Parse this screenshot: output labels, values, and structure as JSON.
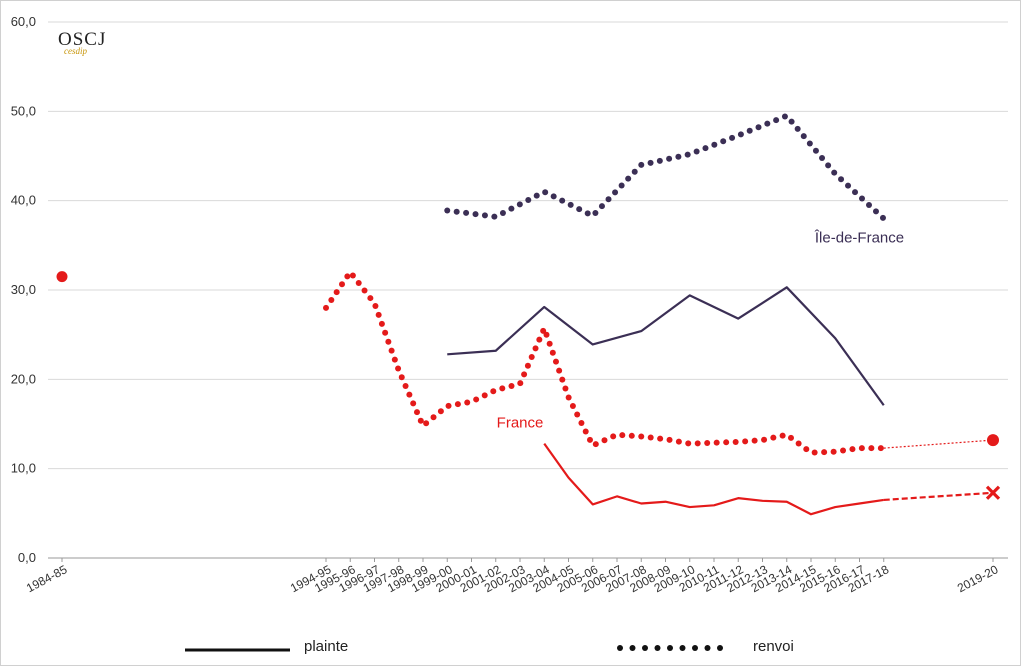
{
  "logo": {
    "main": "OSCJ",
    "sub": "cesdip"
  },
  "legend": {
    "plainte": "plainte",
    "renvoi": "renvoi"
  },
  "colors": {
    "idf": "#3b2f55",
    "france": "#e41a1a",
    "grid": "#d9d9d9",
    "axis": "#999999"
  },
  "chart_data": {
    "type": "line",
    "title": "",
    "xlabel": "",
    "ylabel": "",
    "ylim": [
      0,
      60
    ],
    "y_ticks": [
      "0,0",
      "10,0",
      "20,0",
      "30,0",
      "40,0",
      "50,0",
      "60,0"
    ],
    "categories": [
      "1984-85",
      "1994-95",
      "1995-96",
      "1996-97",
      "1997-98",
      "1998-99",
      "1999-00",
      "2000-01",
      "2001-02",
      "2002-03",
      "2003-04",
      "2004-05",
      "2005-06",
      "2006-07",
      "2007-08",
      "2008-09",
      "2009-10",
      "2010-11",
      "2011-12",
      "2012-13",
      "2013-14",
      "2014-15",
      "2015-16",
      "2016-17",
      "2017-18",
      "2019-20"
    ],
    "grid": true,
    "series": [
      {
        "name": "Île-de-France",
        "kind": "renvoi",
        "color": "#3b2f55",
        "style": "dotted",
        "points": [
          [
            "1999-00",
            38.9
          ],
          [
            "2001-02",
            38.2
          ],
          [
            "2003-04",
            41.0
          ],
          [
            "2005-06",
            38.3
          ],
          [
            "2007-08",
            44.0
          ],
          [
            "2009-10",
            45.2
          ],
          [
            "2011-12",
            47.3
          ],
          [
            "2013-14",
            49.5
          ],
          [
            "2015-16",
            43.0
          ],
          [
            "2017-18",
            38.0
          ]
        ]
      },
      {
        "name": "Île-de-France",
        "kind": "plainte",
        "color": "#3b2f55",
        "style": "solid",
        "points": [
          [
            "1999-00",
            22.8
          ],
          [
            "2001-02",
            23.2
          ],
          [
            "2003-04",
            28.1
          ],
          [
            "2005-06",
            23.9
          ],
          [
            "2007-08",
            25.4
          ],
          [
            "2009-10",
            29.4
          ],
          [
            "2011-12",
            26.8
          ],
          [
            "2013-14",
            30.3
          ],
          [
            "2015-16",
            24.6
          ],
          [
            "2017-18",
            17.1
          ]
        ]
      },
      {
        "name": "France",
        "kind": "renvoi",
        "color": "#e41a1a",
        "style": "dotted",
        "points": [
          [
            "1994-95",
            28.0
          ],
          [
            "1995-96",
            32.0
          ],
          [
            "1996-97",
            28.5
          ],
          [
            "1997-98",
            21.0
          ],
          [
            "1998-99",
            14.8
          ],
          [
            "1999-00",
            17.0
          ],
          [
            "2000-01",
            17.5
          ],
          [
            "2001-02",
            18.8
          ],
          [
            "2002-03",
            19.5
          ],
          [
            "2003-04",
            25.7
          ],
          [
            "2004-05",
            18.0
          ],
          [
            "2005-06",
            12.6
          ],
          [
            "2006-07",
            13.8
          ],
          [
            "2007-08",
            13.6
          ],
          [
            "2008-09",
            13.3
          ],
          [
            "2009-10",
            12.8
          ],
          [
            "2010-11",
            12.9
          ],
          [
            "2011-12",
            13.0
          ],
          [
            "2012-13",
            13.2
          ],
          [
            "2013-14",
            13.8
          ],
          [
            "2014-15",
            11.8
          ],
          [
            "2015-16",
            11.9
          ],
          [
            "2016-17",
            12.3
          ],
          [
            "2017-18",
            12.3
          ]
        ],
        "extension": {
          "to": [
            "2019-20",
            13.2
          ],
          "marker": "circle"
        }
      },
      {
        "name": "France",
        "kind": "plainte",
        "color": "#e41a1a",
        "style": "solid",
        "points": [
          [
            "2003-04",
            12.8
          ],
          [
            "2004-05",
            9.0
          ],
          [
            "2005-06",
            6.0
          ],
          [
            "2006-07",
            6.9
          ],
          [
            "2007-08",
            6.1
          ],
          [
            "2008-09",
            6.3
          ],
          [
            "2009-10",
            5.7
          ],
          [
            "2010-11",
            5.9
          ],
          [
            "2011-12",
            6.7
          ],
          [
            "2012-13",
            6.4
          ],
          [
            "2013-14",
            6.3
          ],
          [
            "2014-15",
            4.9
          ],
          [
            "2015-16",
            5.7
          ],
          [
            "2016-17",
            6.1
          ],
          [
            "2017-18",
            6.5
          ]
        ],
        "extension": {
          "to": [
            "2019-20",
            7.3
          ],
          "marker": "cross"
        }
      },
      {
        "name": "",
        "kind": "single",
        "color": "#e41a1a",
        "style": "marker",
        "points": [
          [
            "1984-85",
            31.5
          ]
        ]
      }
    ],
    "annotations": [
      {
        "text": "Île-de-France",
        "color": "#3b2f55",
        "x": "2016-17",
        "y": 35.3
      },
      {
        "text": "France",
        "color": "#e41a1a",
        "x": "2002-03",
        "y": 14.6
      }
    ]
  }
}
